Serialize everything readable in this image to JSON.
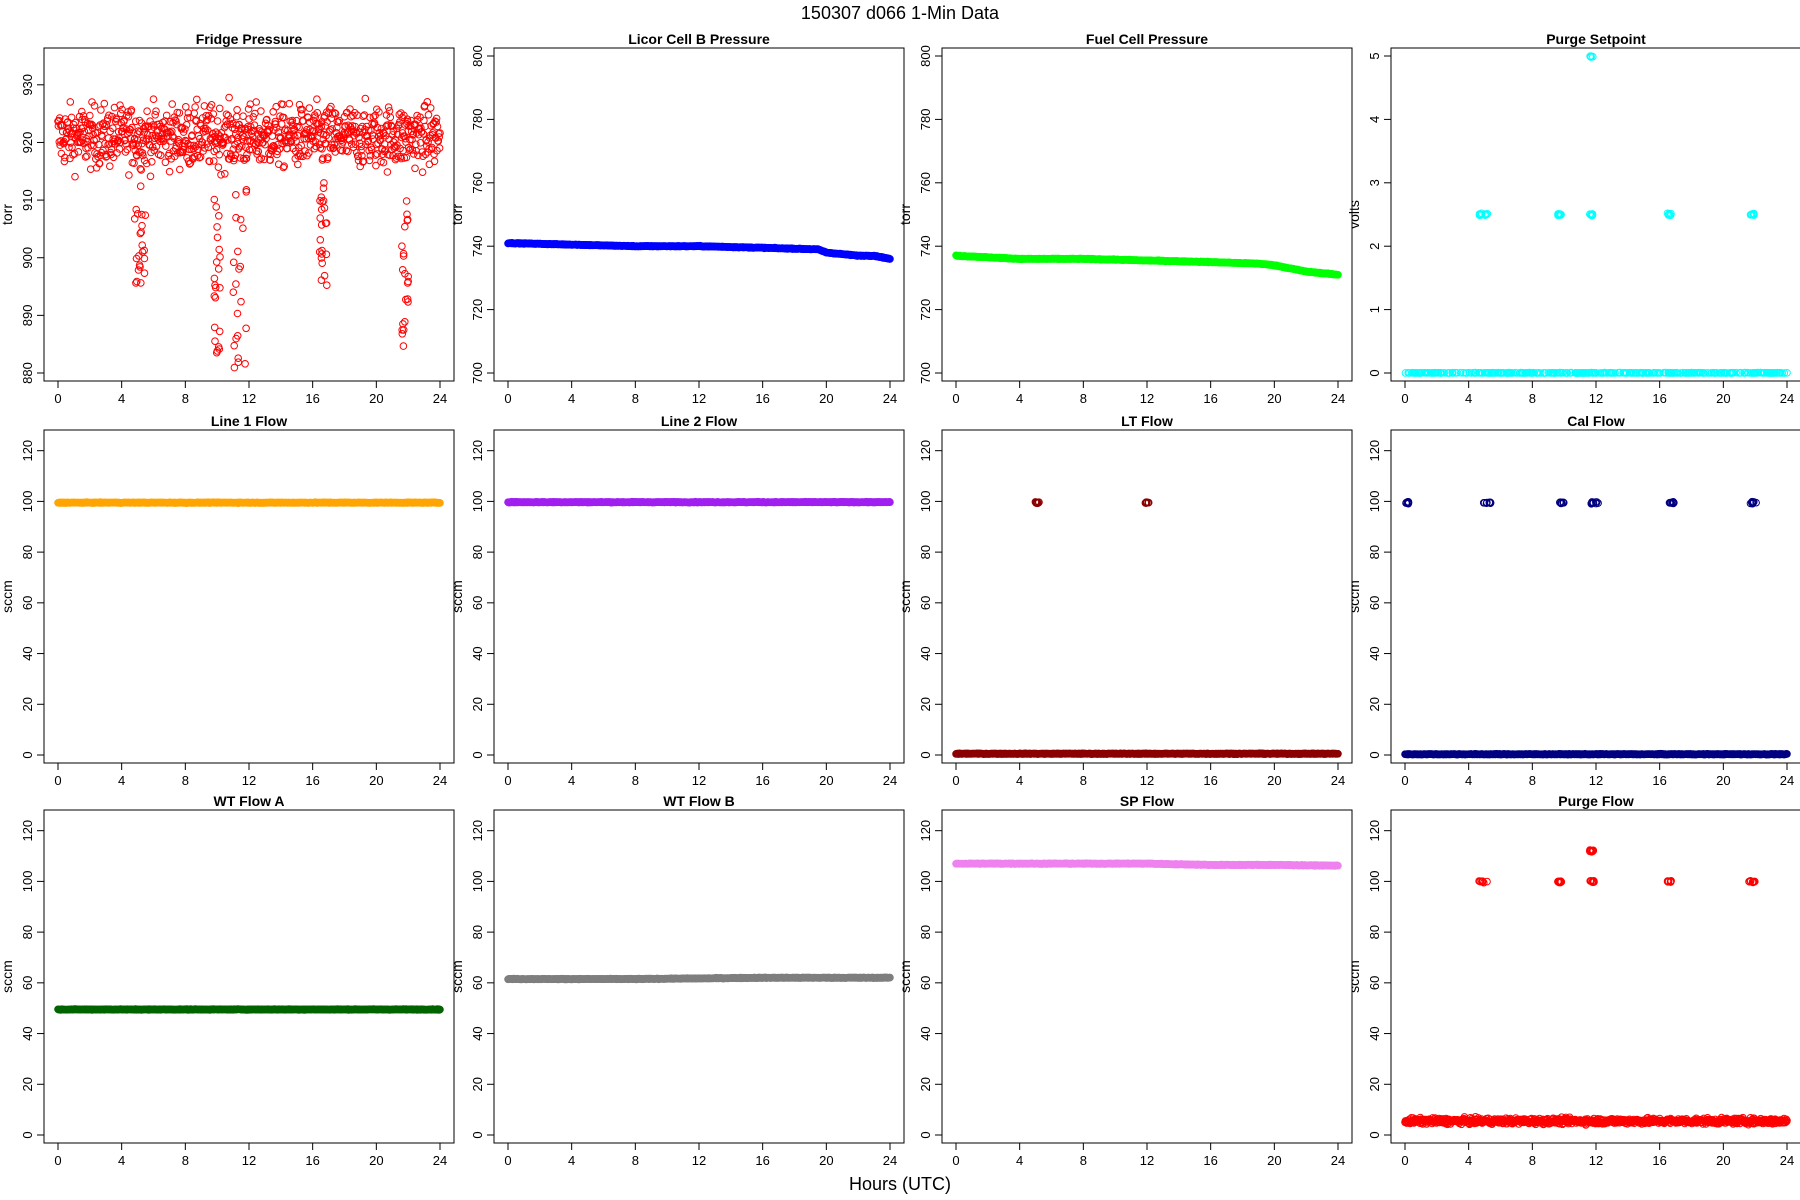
{
  "page": {
    "title": "150307   d066   1-Min Data",
    "xlabel": "Hours (UTC)"
  },
  "chart_data": [
    {
      "type": "scatter",
      "title": "Fridge Pressure",
      "ylabel": "torr",
      "color": "#ff0000",
      "marker": "open-circle",
      "xlim": [
        0,
        24
      ],
      "xticks": [
        0,
        4,
        8,
        12,
        16,
        20,
        24
      ],
      "ylim": [
        880,
        935
      ],
      "yticks": [
        880,
        890,
        900,
        910,
        920,
        930
      ],
      "baseline": {
        "kind": "noisy",
        "center": 921,
        "spread": 7
      },
      "dips": [
        {
          "x": [
            4.8,
            5.5
          ],
          "low": 893
        },
        {
          "x": [
            9.8,
            10.2
          ],
          "low": 883
        },
        {
          "x": [
            11.0,
            11.9
          ],
          "low": 880
        },
        {
          "x": [
            16.4,
            16.9
          ],
          "low": 894
        },
        {
          "x": [
            21.6,
            22.1
          ],
          "low": 883
        }
      ]
    },
    {
      "type": "scatter",
      "title": "Licor Cell B Pressure",
      "ylabel": "torr",
      "color": "#0000ff",
      "marker": "open-circle",
      "xlim": [
        0,
        24
      ],
      "xticks": [
        0,
        4,
        8,
        12,
        16,
        20,
        24
      ],
      "ylim": [
        700,
        800
      ],
      "yticks": [
        700,
        720,
        740,
        760,
        780,
        800
      ],
      "line": {
        "x": [
          0,
          4,
          8,
          12,
          16,
          19.5,
          20,
          21,
          22,
          23,
          24
        ],
        "y": [
          741,
          740.5,
          740,
          740,
          739.5,
          739,
          738,
          737.5,
          737,
          737,
          736
        ]
      }
    },
    {
      "type": "scatter",
      "title": "Fuel Cell Pressure",
      "ylabel": "torr",
      "color": "#00ff00",
      "marker": "open-circle",
      "xlim": [
        0,
        24
      ],
      "xticks": [
        0,
        4,
        8,
        12,
        16,
        20,
        24
      ],
      "ylim": [
        700,
        800
      ],
      "yticks": [
        700,
        720,
        740,
        760,
        780,
        800
      ],
      "line": {
        "x": [
          0,
          4,
          8,
          12,
          16,
          19,
          20,
          21,
          22,
          23,
          24
        ],
        "y": [
          737,
          736,
          736,
          735.5,
          735,
          734.5,
          734,
          733,
          732,
          731.5,
          731
        ]
      }
    },
    {
      "type": "scatter",
      "title": "Purge Setpoint",
      "ylabel": "volts",
      "color": "#00ffff",
      "marker": "open-circle",
      "xlim": [
        0,
        24
      ],
      "xticks": [
        0,
        4,
        8,
        12,
        16,
        20,
        24
      ],
      "ylim": [
        0,
        5
      ],
      "yticks": [
        0,
        1,
        2,
        3,
        4,
        5
      ],
      "line": {
        "x": [
          0,
          24
        ],
        "y": [
          0,
          0
        ]
      },
      "clusters": [
        {
          "x": [
            4.6,
            5.2
          ],
          "y": 2.5
        },
        {
          "x": 9.7,
          "y": 2.5
        },
        {
          "x": [
            11.5,
            11.8
          ],
          "y": 5
        },
        {
          "x": [
            11.6,
            11.8
          ],
          "y": 2.5
        },
        {
          "x": 16.6,
          "y": 2.5
        },
        {
          "x": [
            21.6,
            22.0
          ],
          "y": 2.5
        }
      ]
    },
    {
      "type": "scatter",
      "title": "Line 1 Flow",
      "ylabel": "sccm",
      "color": "#ffa500",
      "marker": "open-circle",
      "xlim": [
        0,
        24
      ],
      "xticks": [
        0,
        4,
        8,
        12,
        16,
        20,
        24
      ],
      "ylim": [
        0,
        125
      ],
      "yticks": [
        0,
        20,
        40,
        60,
        80,
        100,
        120
      ],
      "line": {
        "x": [
          0,
          24
        ],
        "y": [
          99.5,
          99.5
        ]
      }
    },
    {
      "type": "scatter",
      "title": "Line 2 Flow",
      "ylabel": "sccm",
      "color": "#a020f0",
      "marker": "open-circle",
      "xlim": [
        0,
        24
      ],
      "xticks": [
        0,
        4,
        8,
        12,
        16,
        20,
        24
      ],
      "ylim": [
        0,
        125
      ],
      "yticks": [
        0,
        20,
        40,
        60,
        80,
        100,
        120
      ],
      "line": {
        "x": [
          0,
          24
        ],
        "y": [
          99.7,
          99.7
        ]
      }
    },
    {
      "type": "scatter",
      "title": "LT Flow",
      "ylabel": "sccm",
      "color": "#8b0000",
      "marker": "open-circle",
      "xlim": [
        0,
        24
      ],
      "xticks": [
        0,
        4,
        8,
        12,
        16,
        20,
        24
      ],
      "ylim": [
        0,
        125
      ],
      "yticks": [
        0,
        20,
        40,
        60,
        80,
        100,
        120
      ],
      "line": {
        "x": [
          0,
          24
        ],
        "y": [
          0.5,
          0.5
        ]
      },
      "clusters": [
        {
          "x": 5.1,
          "y": 99.5
        },
        {
          "x": 12.0,
          "y": 99.5
        }
      ]
    },
    {
      "type": "scatter",
      "title": "Cal Flow",
      "ylabel": "sccm",
      "color": "#000080",
      "marker": "open-circle",
      "xlim": [
        0,
        24
      ],
      "xticks": [
        0,
        4,
        8,
        12,
        16,
        20,
        24
      ],
      "ylim": [
        0,
        125
      ],
      "yticks": [
        0,
        20,
        40,
        60,
        80,
        100,
        120
      ],
      "line": {
        "x": [
          0,
          24
        ],
        "y": [
          0.3,
          0.3
        ]
      },
      "clusters": [
        {
          "x": 0.1,
          "y": 99.5
        },
        {
          "x": [
            4.9,
            5.4
          ],
          "y": 99.5
        },
        {
          "x": [
            9.7,
            10.0
          ],
          "y": 99.5
        },
        {
          "x": [
            11.7,
            12.2
          ],
          "y": 99.5
        },
        {
          "x": [
            16.6,
            16.9
          ],
          "y": 99.5
        },
        {
          "x": [
            21.6,
            22.1
          ],
          "y": 99.5
        }
      ]
    },
    {
      "type": "scatter",
      "title": "WT Flow A",
      "ylabel": "sccm",
      "color": "#006400",
      "marker": "open-circle",
      "xlim": [
        0,
        24
      ],
      "xticks": [
        0,
        4,
        8,
        12,
        16,
        20,
        24
      ],
      "ylim": [
        0,
        125
      ],
      "yticks": [
        0,
        20,
        40,
        60,
        80,
        100,
        120
      ],
      "line": {
        "x": [
          0,
          24
        ],
        "y": [
          49.5,
          49.5
        ]
      }
    },
    {
      "type": "scatter",
      "title": "WT Flow B",
      "ylabel": "sccm",
      "color": "#7f7f7f",
      "marker": "open-circle",
      "xlim": [
        0,
        24
      ],
      "xticks": [
        0,
        4,
        8,
        12,
        16,
        20,
        24
      ],
      "ylim": [
        0,
        125
      ],
      "yticks": [
        0,
        20,
        40,
        60,
        80,
        100,
        120
      ],
      "line": {
        "x": [
          0,
          8,
          16,
          24
        ],
        "y": [
          61.5,
          61.5,
          62,
          62
        ]
      }
    },
    {
      "type": "scatter",
      "title": "SP Flow",
      "ylabel": "sccm",
      "color": "#ee82ee",
      "marker": "open-circle",
      "xlim": [
        0,
        24
      ],
      "xticks": [
        0,
        4,
        8,
        12,
        16,
        20,
        24
      ],
      "ylim": [
        0,
        125
      ],
      "yticks": [
        0,
        20,
        40,
        60,
        80,
        100,
        120
      ],
      "line": {
        "x": [
          0,
          8,
          12,
          16,
          20,
          24
        ],
        "y": [
          107,
          107,
          107,
          106.5,
          106.5,
          106.2
        ]
      }
    },
    {
      "type": "scatter",
      "title": "Purge Flow",
      "ylabel": "sccm",
      "color": "#ff0000",
      "marker": "open-circle",
      "xlim": [
        0,
        24
      ],
      "xticks": [
        0,
        4,
        8,
        12,
        16,
        20,
        24
      ],
      "ylim": [
        0,
        125
      ],
      "yticks": [
        0,
        20,
        40,
        60,
        80,
        100,
        120
      ],
      "baseline": {
        "kind": "noisy",
        "center": 5.5,
        "spread": 1.5
      },
      "clusters": [
        {
          "x": [
            4.6,
            5.2
          ],
          "y": 100
        },
        {
          "x": 9.7,
          "y": 100
        },
        {
          "x": [
            11.6,
            11.9
          ],
          "y": 100
        },
        {
          "x": [
            11.6,
            11.9
          ],
          "y": 112
        },
        {
          "x": 16.6,
          "y": 100
        },
        {
          "x": [
            21.6,
            22.0
          ],
          "y": 100
        }
      ]
    }
  ]
}
